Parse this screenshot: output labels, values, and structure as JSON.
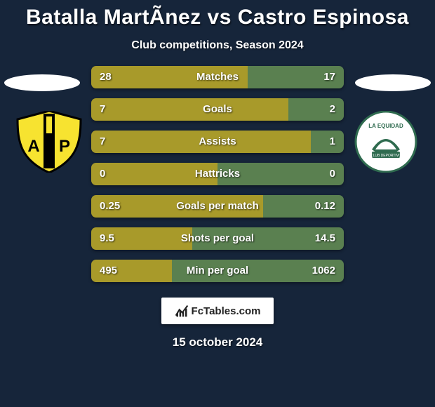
{
  "title": "Batalla MartÃ­nez vs Castro Espinosa",
  "subtitle": "Club competitions, Season 2024",
  "date": "15 october 2024",
  "brand": "FcTables.com",
  "colors": {
    "left": "#a89a2a",
    "right": "#5a8050",
    "background": "#16253a",
    "text": "#ffffff"
  },
  "left_team": {
    "badge_bg": "#f7e330",
    "badge_stripe": "#000000",
    "badge_letters": "AP"
  },
  "right_team": {
    "badge_bg": "#ffffff",
    "badge_inner": "#2f6b4f",
    "badge_text": "LA EQUIDAD",
    "badge_sub": "CLUB DEPORTIVO"
  },
  "bars": {
    "fontsize": 15,
    "height": 32,
    "radius": 7,
    "rows": [
      {
        "label": "Matches",
        "left_val": "28",
        "right_val": "17",
        "left_pct": 62,
        "right_pct": 38
      },
      {
        "label": "Goals",
        "left_val": "7",
        "right_val": "2",
        "left_pct": 78,
        "right_pct": 22
      },
      {
        "label": "Assists",
        "left_val": "7",
        "right_val": "1",
        "left_pct": 87,
        "right_pct": 13
      },
      {
        "label": "Hattricks",
        "left_val": "0",
        "right_val": "0",
        "left_pct": 50,
        "right_pct": 50
      },
      {
        "label": "Goals per match",
        "left_val": "0.25",
        "right_val": "0.12",
        "left_pct": 68,
        "right_pct": 32
      },
      {
        "label": "Shots per goal",
        "left_val": "9.5",
        "right_val": "14.5",
        "left_pct": 40,
        "right_pct": 60
      },
      {
        "label": "Min per goal",
        "left_val": "495",
        "right_val": "1062",
        "left_pct": 32,
        "right_pct": 68
      }
    ]
  }
}
